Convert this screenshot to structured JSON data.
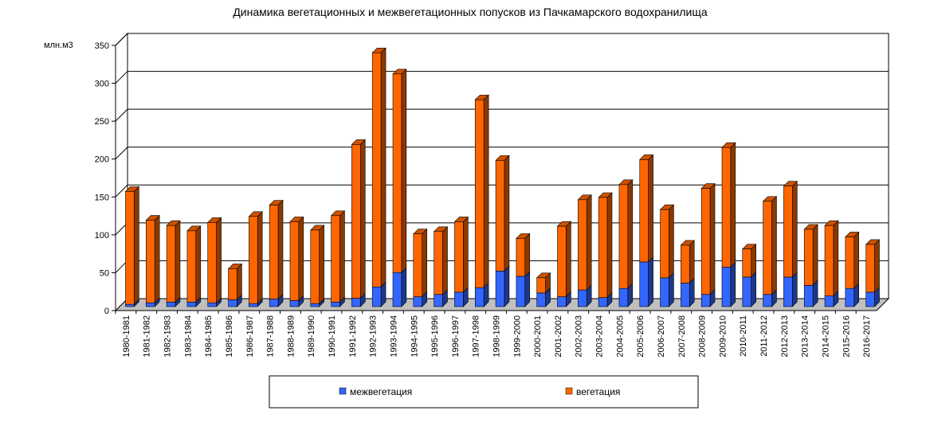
{
  "chart_data": {
    "type": "bar",
    "stacked": true,
    "three_d": true,
    "title": "Динамика вегетационных и межвегетационных попусков из Пачкамарского  водохранилища",
    "ylabel": "млн.м3",
    "xlabel": "",
    "ylim": [
      0,
      350
    ],
    "yticks": [
      0,
      50,
      100,
      150,
      200,
      250,
      300,
      350
    ],
    "grid": true,
    "legend_position": "bottom",
    "categories": [
      "1980-1981",
      "1981-1982",
      "1982-1983",
      "1983-1984",
      "1984-1985",
      "1985-1986",
      "1986-1987",
      "1987-1988",
      "1988-1989",
      "1989-1990",
      "1990-1991",
      "1991-1992",
      "1992-1993",
      "1993-1994",
      "1994-1995",
      "1995-1996",
      "1996-1997",
      "1997-1998",
      "1998-1999",
      "1999-2000",
      "2000-2001",
      "2001-2002",
      "2002-2003",
      "2003-2004",
      "2004-2005",
      "2005-2006",
      "2006-2007",
      "2007-2008",
      "2008-2009",
      "2009-2010",
      "2010-2011",
      "2011-2012",
      "2012-2013",
      "2013-2014",
      "2014-2015",
      "2015-2016",
      "2016-2017"
    ],
    "series": [
      {
        "name": "межвегетация",
        "color": "#3366ff",
        "values": [
          3,
          5,
          6,
          6,
          5,
          9,
          4,
          10,
          8,
          4,
          6,
          11,
          26,
          45,
          13,
          16,
          19,
          25,
          47,
          40,
          18,
          13,
          22,
          12,
          24,
          59,
          38,
          31,
          16,
          52,
          39,
          16,
          39,
          28,
          14,
          24,
          19
        ]
      },
      {
        "name": "вегетация",
        "color": "#ff6600",
        "values": [
          149,
          109,
          101,
          94,
          106,
          41,
          115,
          124,
          104,
          97,
          114,
          203,
          309,
          262,
          83,
          83,
          93,
          248,
          146,
          50,
          20,
          93,
          119,
          132,
          137,
          135,
          90,
          50,
          140,
          158,
          37,
          123,
          120,
          74,
          93,
          68,
          63
        ]
      }
    ]
  }
}
